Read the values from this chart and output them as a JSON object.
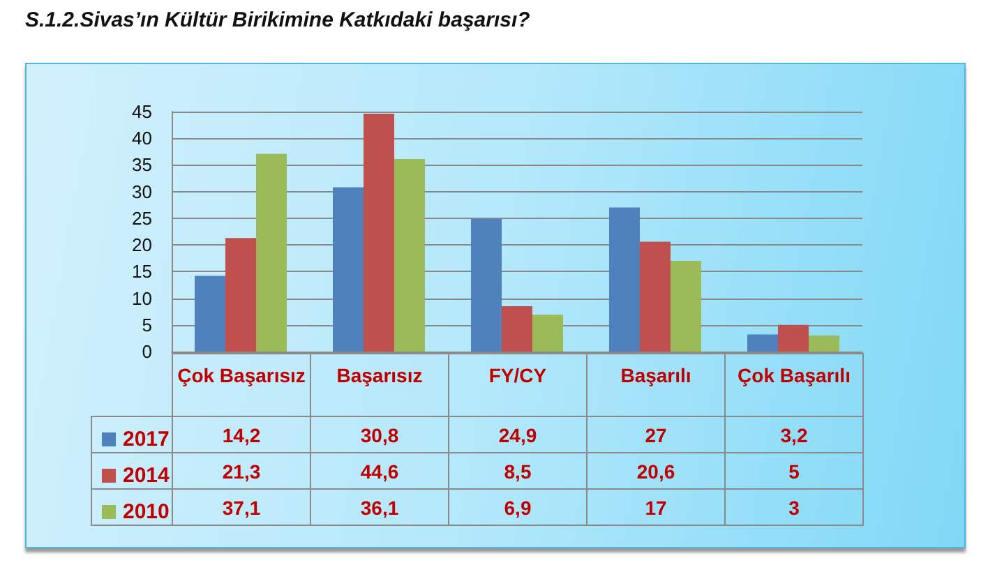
{
  "chart_data": {
    "type": "bar",
    "title": "S.1.2.Sivas’ın Kültür Birikimine Katkıdaki başarısı?",
    "categories": [
      "Çok Başarısız",
      "Başarısız",
      "FY/CY",
      "Başarılı",
      "Çok Başarılı"
    ],
    "series": [
      {
        "name": "2017",
        "color": "#4f81bd",
        "values": [
          14.2,
          30.8,
          24.9,
          27,
          3.2
        ],
        "value_labels": [
          "14,2",
          "30,8",
          "24,9",
          "27",
          "3,2"
        ]
      },
      {
        "name": "2014",
        "color": "#c0504d",
        "values": [
          21.3,
          44.6,
          8.5,
          20.6,
          5
        ],
        "value_labels": [
          "21,3",
          "44,6",
          "8,5",
          "20,6",
          "5"
        ]
      },
      {
        "name": "2010",
        "color": "#9bbb59",
        "values": [
          37.1,
          36.1,
          6.9,
          17,
          3
        ],
        "value_labels": [
          "37,1",
          "36,1",
          "6,9",
          "17",
          "3"
        ]
      }
    ],
    "ylim": [
      0,
      45
    ],
    "yticks": [
      0,
      5,
      10,
      15,
      20,
      25,
      30,
      35,
      40,
      45
    ],
    "grid": "y",
    "legend": "bottom left"
  }
}
